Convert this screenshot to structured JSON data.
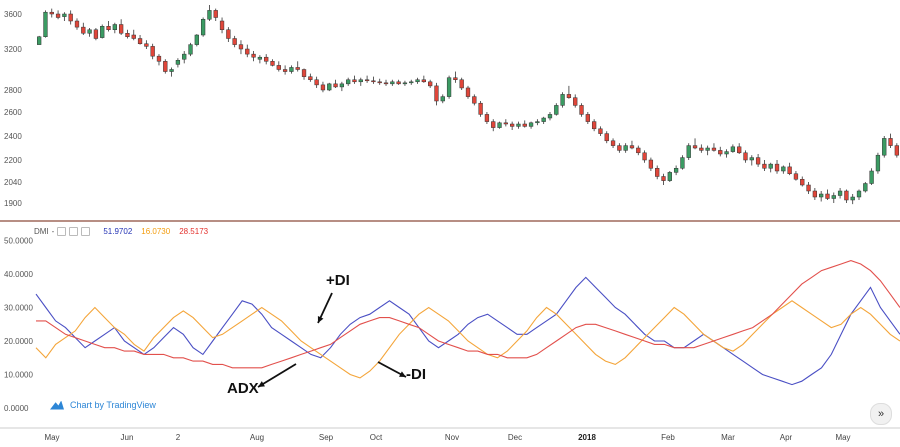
{
  "chart_data": [
    {
      "type": "candlestick",
      "x_labels": [
        "May",
        "Jun",
        "2",
        "Aug",
        "Sep",
        "Oct",
        "Nov",
        "Dec",
        "2018",
        "Feb",
        "Mar",
        "Apr",
        "May"
      ],
      "y_ticks": [
        3600,
        3200,
        2800,
        2600,
        2400,
        2200,
        2040,
        1900
      ],
      "ylim": [
        1820,
        3700
      ],
      "ohlc": [
        [
          3250,
          3350,
          3250,
          3340
        ],
        [
          3340,
          3640,
          3330,
          3620
        ],
        [
          3620,
          3660,
          3560,
          3600
        ],
        [
          3600,
          3640,
          3540,
          3560
        ],
        [
          3570,
          3620,
          3520,
          3600
        ],
        [
          3600,
          3640,
          3480,
          3520
        ],
        [
          3520,
          3550,
          3420,
          3450
        ],
        [
          3450,
          3500,
          3360,
          3380
        ],
        [
          3380,
          3440,
          3340,
          3420
        ],
        [
          3420,
          3440,
          3300,
          3320
        ],
        [
          3330,
          3480,
          3320,
          3460
        ],
        [
          3460,
          3520,
          3400,
          3420
        ],
        [
          3420,
          3500,
          3380,
          3480
        ],
        [
          3480,
          3540,
          3360,
          3380
        ],
        [
          3380,
          3420,
          3320,
          3340
        ],
        [
          3360,
          3420,
          3300,
          3320
        ],
        [
          3320,
          3360,
          3250,
          3260
        ],
        [
          3260,
          3300,
          3200,
          3230
        ],
        [
          3230,
          3260,
          3100,
          3130
        ],
        [
          3130,
          3150,
          3040,
          3080
        ],
        [
          3080,
          3100,
          2960,
          2980
        ],
        [
          2980,
          3020,
          2930,
          3000
        ],
        [
          3050,
          3110,
          3020,
          3090
        ],
        [
          3100,
          3180,
          3060,
          3150
        ],
        [
          3150,
          3270,
          3130,
          3250
        ],
        [
          3250,
          3370,
          3230,
          3360
        ],
        [
          3360,
          3560,
          3340,
          3540
        ],
        [
          3540,
          3700,
          3520,
          3640
        ],
        [
          3640,
          3660,
          3520,
          3560
        ],
        [
          3520,
          3560,
          3380,
          3420
        ],
        [
          3420,
          3450,
          3280,
          3320
        ],
        [
          3320,
          3350,
          3220,
          3250
        ],
        [
          3250,
          3300,
          3150,
          3200
        ],
        [
          3200,
          3250,
          3120,
          3150
        ],
        [
          3150,
          3180,
          3080,
          3120
        ],
        [
          3100,
          3140,
          3060,
          3120
        ],
        [
          3120,
          3150,
          3050,
          3080
        ],
        [
          3080,
          3100,
          3030,
          3040
        ],
        [
          3040,
          3080,
          2980,
          3000
        ],
        [
          3000,
          3040,
          2950,
          2980
        ],
        [
          2980,
          3040,
          2960,
          3020
        ],
        [
          3020,
          3080,
          2980,
          3000
        ],
        [
          3000,
          3010,
          2900,
          2930
        ],
        [
          2930,
          2960,
          2880,
          2900
        ],
        [
          2900,
          2930,
          2820,
          2850
        ],
        [
          2850,
          2880,
          2780,
          2800
        ],
        [
          2800,
          2870,
          2790,
          2860
        ],
        [
          2860,
          2900,
          2820,
          2830
        ],
        [
          2830,
          2880,
          2790,
          2860
        ],
        [
          2860,
          2920,
          2840,
          2900
        ],
        [
          2900,
          2940,
          2860,
          2880
        ],
        [
          2880,
          2920,
          2840,
          2900
        ],
        [
          2900,
          2940,
          2870,
          2890
        ],
        [
          2890,
          2930,
          2860,
          2880
        ],
        [
          2880,
          2910,
          2850,
          2870
        ],
        [
          2870,
          2900,
          2840,
          2860
        ],
        [
          2860,
          2900,
          2840,
          2880
        ],
        [
          2880,
          2900,
          2850,
          2860
        ],
        [
          2860,
          2890,
          2840,
          2870
        ],
        [
          2870,
          2900,
          2850,
          2880
        ],
        [
          2880,
          2920,
          2860,
          2900
        ],
        [
          2900,
          2940,
          2870,
          2880
        ],
        [
          2880,
          2900,
          2820,
          2840
        ],
        [
          2840,
          2870,
          2660,
          2700
        ],
        [
          2700,
          2760,
          2680,
          2740
        ],
        [
          2740,
          2940,
          2720,
          2920
        ],
        [
          2920,
          2980,
          2870,
          2900
        ],
        [
          2900,
          2920,
          2800,
          2820
        ],
        [
          2820,
          2840,
          2720,
          2740
        ],
        [
          2740,
          2760,
          2660,
          2680
        ],
        [
          2680,
          2700,
          2560,
          2580
        ],
        [
          2580,
          2600,
          2500,
          2520
        ],
        [
          2520,
          2540,
          2440,
          2470
        ],
        [
          2470,
          2520,
          2460,
          2510
        ],
        [
          2510,
          2540,
          2480,
          2500
        ],
        [
          2500,
          2520,
          2450,
          2480
        ],
        [
          2480,
          2520,
          2460,
          2500
        ],
        [
          2500,
          2530,
          2470,
          2480
        ],
        [
          2480,
          2520,
          2460,
          2510
        ],
        [
          2510,
          2540,
          2490,
          2520
        ],
        [
          2520,
          2560,
          2500,
          2550
        ],
        [
          2550,
          2600,
          2530,
          2580
        ],
        [
          2580,
          2680,
          2570,
          2660
        ],
        [
          2660,
          2780,
          2640,
          2760
        ],
        [
          2760,
          2840,
          2720,
          2730
        ],
        [
          2730,
          2760,
          2640,
          2660
        ],
        [
          2660,
          2680,
          2560,
          2580
        ],
        [
          2580,
          2600,
          2500,
          2520
        ],
        [
          2520,
          2540,
          2440,
          2460
        ],
        [
          2460,
          2480,
          2400,
          2420
        ],
        [
          2420,
          2440,
          2340,
          2360
        ],
        [
          2360,
          2380,
          2300,
          2320
        ],
        [
          2320,
          2340,
          2260,
          2280
        ],
        [
          2280,
          2340,
          2260,
          2320
        ],
        [
          2320,
          2360,
          2290,
          2300
        ],
        [
          2300,
          2320,
          2240,
          2260
        ],
        [
          2260,
          2280,
          2180,
          2200
        ],
        [
          2200,
          2220,
          2120,
          2140
        ],
        [
          2140,
          2160,
          2060,
          2080
        ],
        [
          2080,
          2100,
          2020,
          2050
        ],
        [
          2050,
          2120,
          2040,
          2110
        ],
        [
          2110,
          2160,
          2090,
          2140
        ],
        [
          2140,
          2240,
          2130,
          2220
        ],
        [
          2220,
          2340,
          2200,
          2320
        ],
        [
          2320,
          2380,
          2290,
          2300
        ],
        [
          2300,
          2330,
          2260,
          2280
        ],
        [
          2280,
          2320,
          2240,
          2300
        ],
        [
          2300,
          2340,
          2270,
          2280
        ],
        [
          2280,
          2310,
          2230,
          2250
        ],
        [
          2250,
          2290,
          2220,
          2270
        ],
        [
          2270,
          2330,
          2260,
          2310
        ],
        [
          2310,
          2340,
          2250,
          2260
        ],
        [
          2260,
          2280,
          2180,
          2200
        ],
        [
          2200,
          2240,
          2160,
          2220
        ],
        [
          2220,
          2250,
          2150,
          2170
        ],
        [
          2170,
          2200,
          2120,
          2140
        ],
        [
          2140,
          2180,
          2110,
          2170
        ],
        [
          2170,
          2200,
          2100,
          2120
        ],
        [
          2120,
          2160,
          2100,
          2150
        ],
        [
          2150,
          2180,
          2090,
          2100
        ],
        [
          2100,
          2120,
          2050,
          2060
        ],
        [
          2060,
          2080,
          2010,
          2020
        ],
        [
          2020,
          2040,
          1960,
          1980
        ],
        [
          1980,
          2000,
          1920,
          1940
        ],
        [
          1940,
          1980,
          1910,
          1960
        ],
        [
          1960,
          1990,
          1920,
          1930
        ],
        [
          1930,
          1970,
          1900,
          1950
        ],
        [
          1950,
          2000,
          1930,
          1980
        ],
        [
          1980,
          1990,
          1900,
          1920
        ],
        [
          1920,
          1960,
          1890,
          1940
        ],
        [
          1940,
          1990,
          1920,
          1980
        ],
        [
          1980,
          2040,
          1970,
          2030
        ],
        [
          2030,
          2140,
          2020,
          2120
        ],
        [
          2120,
          2260,
          2100,
          2240
        ],
        [
          2240,
          2400,
          2220,
          2380
        ],
        [
          2380,
          2420,
          2300,
          2320
        ],
        [
          2320,
          2340,
          2220,
          2240
        ]
      ]
    },
    {
      "type": "line",
      "title": "DMI",
      "legend_values": [
        "51.9702",
        "16.0730",
        "28.5173"
      ],
      "y_ticks": [
        "50.0000",
        "40.0000",
        "30.0000",
        "20.0000",
        "10.0000",
        "0.0000"
      ],
      "ylim": [
        0,
        55
      ],
      "series": [
        {
          "color": "#4a4fc4",
          "values": [
            34,
            30,
            26,
            24,
            21,
            18,
            20,
            22,
            24,
            20,
            18,
            16,
            18,
            21,
            24,
            22,
            18,
            16,
            20,
            24,
            28,
            32,
            31,
            28,
            24,
            22,
            20,
            18,
            16,
            15,
            18,
            22,
            25,
            27,
            28,
            30,
            32,
            30,
            28,
            24,
            20,
            18,
            20,
            22,
            25,
            27,
            28,
            26,
            24,
            22,
            22,
            24,
            26,
            28,
            32,
            36,
            39,
            36,
            33,
            30,
            28,
            25,
            22,
            20,
            20,
            18,
            18,
            20,
            22,
            20,
            18,
            16,
            14,
            12,
            10,
            9,
            8,
            7,
            8,
            10,
            12,
            16,
            22,
            28,
            32,
            36,
            30,
            26,
            22
          ]
        },
        {
          "color": "#f4a53a",
          "values": [
            18,
            15,
            19,
            21,
            23,
            27,
            30,
            27,
            24,
            22,
            19,
            17,
            21,
            24,
            27,
            29,
            27,
            24,
            21,
            22,
            24,
            26,
            28,
            30,
            28,
            26,
            23,
            20,
            18,
            16,
            14,
            12,
            10,
            9,
            11,
            14,
            18,
            22,
            25,
            28,
            30,
            28,
            26,
            23,
            20,
            18,
            16,
            15,
            17,
            20,
            23,
            27,
            30,
            28,
            25,
            22,
            19,
            16,
            14,
            13,
            15,
            18,
            21,
            24,
            27,
            30,
            28,
            25,
            22,
            20,
            18,
            17,
            19,
            22,
            25,
            28,
            30,
            32,
            30,
            28,
            26,
            24,
            25,
            28,
            30,
            28,
            25,
            22,
            20
          ]
        },
        {
          "color": "#e2504c",
          "values": [
            26,
            26,
            24,
            22,
            21,
            20,
            19,
            18,
            18,
            17,
            17,
            16,
            16,
            16,
            15,
            15,
            14,
            14,
            13,
            13,
            12,
            12,
            12,
            12,
            13,
            14,
            15,
            16,
            17,
            18,
            19,
            21,
            23,
            25,
            26,
            27,
            27,
            26,
            25,
            24,
            22,
            20,
            19,
            18,
            17,
            17,
            16,
            16,
            15,
            15,
            15,
            16,
            18,
            20,
            22,
            24,
            25,
            25,
            24,
            23,
            22,
            21,
            20,
            19,
            19,
            18,
            18,
            18,
            19,
            20,
            21,
            22,
            23,
            24,
            26,
            28,
            31,
            34,
            37,
            39,
            41,
            42,
            43,
            44,
            43,
            41,
            38,
            34,
            30
          ]
        }
      ]
    }
  ],
  "annotations": {
    "plus_di": "+DI",
    "minus_di": "-DI",
    "adx": "ADX"
  },
  "dmi_label": "DMI",
  "dmi_dash": "-",
  "watermark": "Chart by TradingView",
  "nav_symbol": "»",
  "colors": {
    "up": "#3b9b63",
    "down": "#e0463a",
    "separator": "#8c4a3a"
  }
}
